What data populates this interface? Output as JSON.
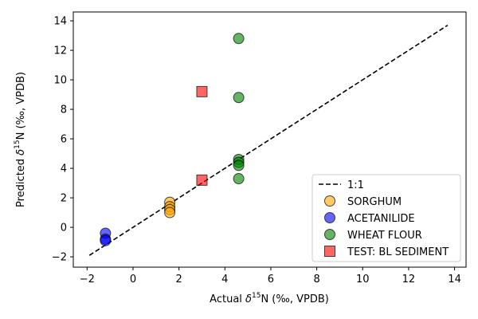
{
  "chart_data": {
    "type": "scatter",
    "xlabel_parts": {
      "pre": "Actual ",
      "delta": "δ",
      "sup": "15",
      "post": "N (‰, VPDB)"
    },
    "ylabel_parts": {
      "pre": "Predicted ",
      "delta": "δ",
      "sup": "15",
      "post": "N (‰, VPDB)"
    },
    "xlim": [
      -2.6,
      14.5
    ],
    "ylim": [
      -2.7,
      14.6
    ],
    "xticks": [
      -2,
      0,
      2,
      4,
      6,
      8,
      10,
      12,
      14
    ],
    "yticks": [
      -2,
      0,
      2,
      4,
      6,
      8,
      10,
      12,
      14
    ],
    "xtick_labels": [
      "−2",
      "0",
      "2",
      "4",
      "6",
      "8",
      "10",
      "12",
      "14"
    ],
    "ytick_labels": [
      "−2",
      "0",
      "2",
      "4",
      "6",
      "8",
      "10",
      "12",
      "14"
    ],
    "grid": false,
    "legend_position": "bottom-right",
    "reference_line": {
      "name": "1:1",
      "x": [
        -1.9,
        13.7
      ],
      "y": [
        -1.9,
        13.7
      ],
      "color": "#000000",
      "style": "dashed"
    },
    "series": [
      {
        "name": "SORGHUM",
        "marker": "circle",
        "color": "#FFA500",
        "points": [
          [
            1.6,
            1.7
          ],
          [
            1.6,
            1.4
          ],
          [
            1.6,
            1.2
          ],
          [
            1.6,
            1.0
          ]
        ]
      },
      {
        "name": "ACETANILIDE",
        "marker": "circle",
        "color": "#0000FF",
        "points": [
          [
            -1.2,
            -0.4
          ],
          [
            -1.2,
            -0.8
          ],
          [
            -1.2,
            -0.9
          ]
        ]
      },
      {
        "name": "WHEAT FLOUR",
        "marker": "circle",
        "color": "#008000",
        "points": [
          [
            4.6,
            12.8
          ],
          [
            4.6,
            8.8
          ],
          [
            4.6,
            4.6
          ],
          [
            4.6,
            4.4
          ],
          [
            4.6,
            4.2
          ],
          [
            4.6,
            3.3
          ]
        ]
      },
      {
        "name": "TEST: BL SEDIMENT",
        "marker": "square",
        "color": "#FF0000",
        "points": [
          [
            3.0,
            9.2
          ],
          [
            3.0,
            3.2
          ]
        ]
      }
    ]
  }
}
